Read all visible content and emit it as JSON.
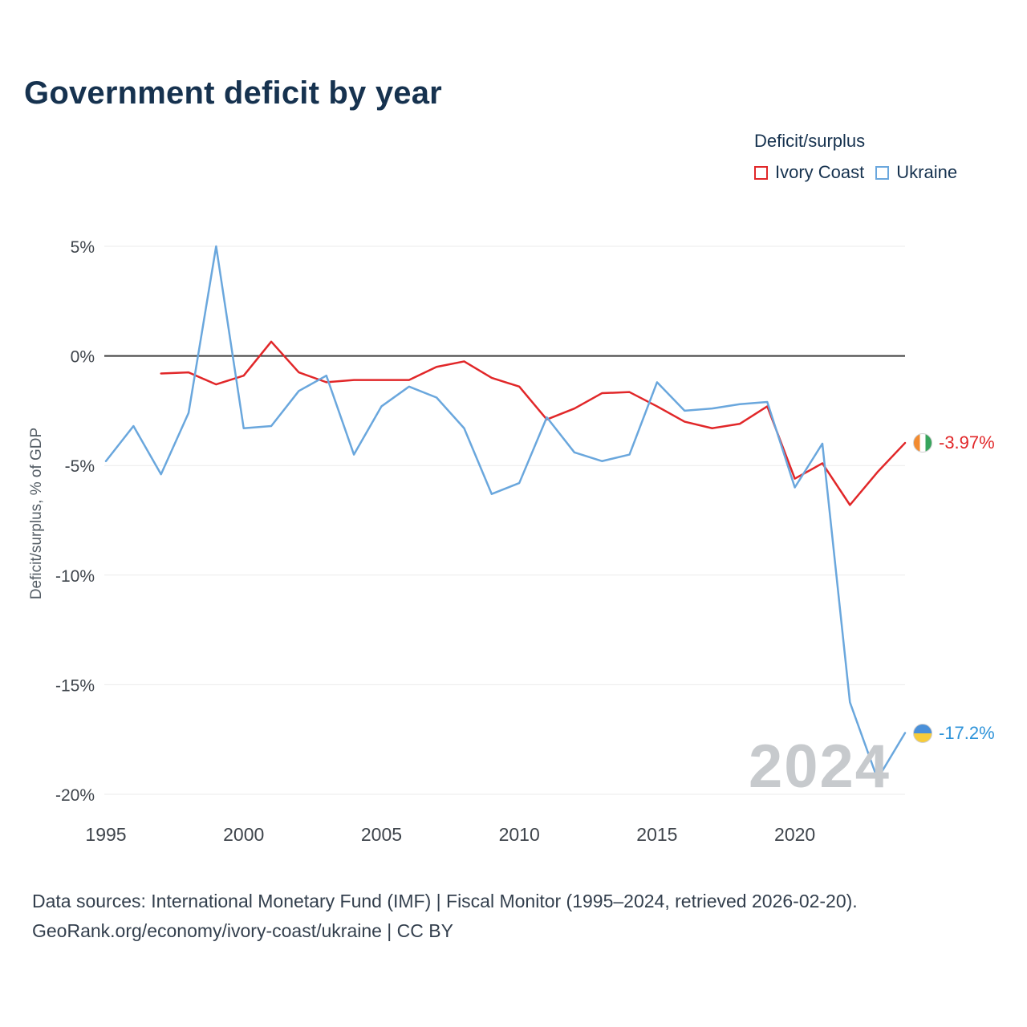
{
  "title": "Government deficit by year",
  "legend": {
    "title": "Deficit/surplus",
    "items": [
      {
        "label": "Ivory Coast",
        "color": "#e12729"
      },
      {
        "label": "Ukraine",
        "color": "#6aa7dd"
      }
    ]
  },
  "watermark": "2024",
  "end_labels": [
    {
      "series": "Ivory Coast",
      "text": "-3.97%",
      "color": "#e12729",
      "flag_icon": "ivory-coast-flag-icon"
    },
    {
      "series": "Ukraine",
      "text": "-17.2%",
      "color": "#2e93d9",
      "flag_icon": "ukraine-flag-icon"
    }
  ],
  "footer": {
    "line1": "Data sources: International Monetary Fund (IMF) | Fiscal Monitor (1995–2024, retrieved 2026-02-20).",
    "line2": "GeoRank.org/economy/ivory-coast/ukraine | CC BY"
  },
  "chart_data": {
    "type": "line",
    "title": "Government deficit by year",
    "xlabel": "",
    "ylabel": "Deficit/surplus, % of GDP",
    "grid": true,
    "legend_position": "top-right",
    "xlim": [
      1995,
      2024
    ],
    "ylim": [
      -20,
      5
    ],
    "xticks": [
      1995,
      2000,
      2005,
      2010,
      2015,
      2020
    ],
    "yticks": [
      5,
      0,
      -5,
      -10,
      -15,
      -20
    ],
    "x": [
      1995,
      1996,
      1997,
      1998,
      1999,
      2000,
      2001,
      2002,
      2003,
      2004,
      2005,
      2006,
      2007,
      2008,
      2009,
      2010,
      2011,
      2012,
      2013,
      2014,
      2015,
      2016,
      2017,
      2018,
      2019,
      2020,
      2021,
      2022,
      2023,
      2024
    ],
    "series": [
      {
        "name": "Ivory Coast",
        "color": "#e12729",
        "values": [
          null,
          null,
          -0.8,
          -0.75,
          -1.3,
          -0.9,
          0.65,
          -0.75,
          -1.2,
          -1.1,
          -1.1,
          -1.1,
          -0.5,
          -0.25,
          -1.0,
          -1.4,
          -2.9,
          -2.4,
          -1.7,
          -1.65,
          -2.3,
          -3.0,
          -3.3,
          -3.1,
          -2.3,
          -5.6,
          -4.9,
          -6.8,
          -5.3,
          -3.97
        ]
      },
      {
        "name": "Ukraine",
        "color": "#6aa7dd",
        "values": [
          -4.8,
          -3.2,
          -5.4,
          -2.6,
          5.0,
          -3.3,
          -3.2,
          -1.6,
          -0.9,
          -4.5,
          -2.3,
          -1.4,
          -1.9,
          -3.3,
          -6.3,
          -5.8,
          -2.8,
          -4.4,
          -4.8,
          -4.5,
          -1.2,
          -2.5,
          -2.4,
          -2.2,
          -2.1,
          -6.0,
          -4.0,
          -15.8,
          -19.3,
          -17.2
        ]
      }
    ]
  }
}
